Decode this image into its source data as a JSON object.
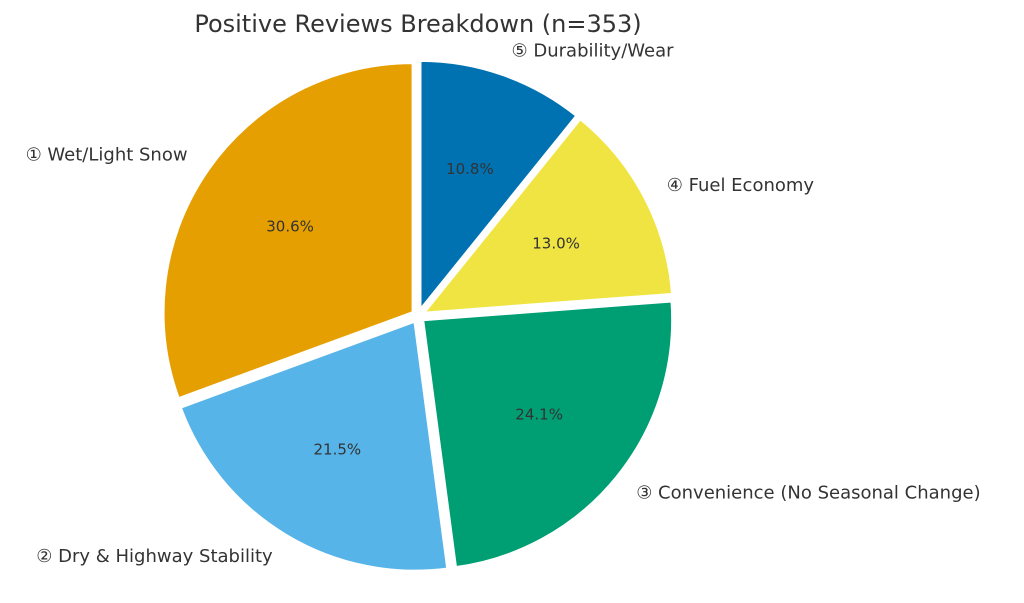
{
  "chart_data": {
    "type": "pie",
    "title": "Positive Reviews Breakdown (n=353)",
    "slices": [
      {
        "label": "① Wet/Light Snow",
        "value": 30.6,
        "pct_label": "30.6%",
        "color": "#E69F00"
      },
      {
        "label": "② Dry & Highway Stability",
        "value": 21.5,
        "pct_label": "21.5%",
        "color": "#56B4E9"
      },
      {
        "label": "③ Convenience (No Seasonal Change)",
        "value": 24.1,
        "pct_label": "24.1%",
        "color": "#009E73"
      },
      {
        "label": "④ Fuel Economy",
        "value": 13.0,
        "pct_label": "13.0%",
        "color": "#F0E442"
      },
      {
        "label": "⑤ Durability/Wear",
        "value": 10.8,
        "pct_label": "10.8%",
        "color": "#0072B2"
      }
    ],
    "start_angle": "top",
    "direction": "counterclockwise",
    "exploded": true,
    "legend": "none"
  }
}
